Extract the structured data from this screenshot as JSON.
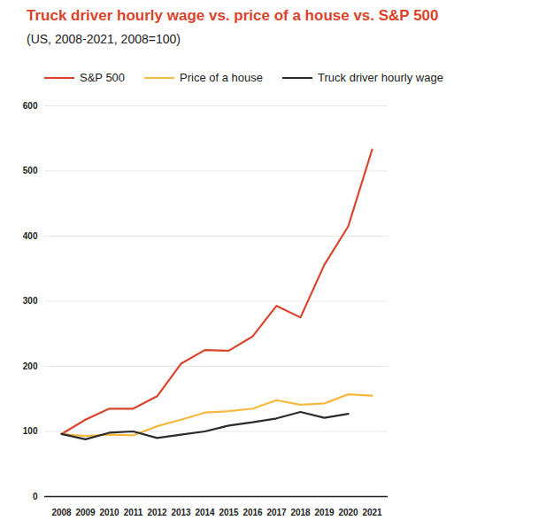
{
  "chart_data": {
    "type": "line",
    "title": "Truck driver hourly wage vs. price of a house vs. S&P 500",
    "subtitle": "(US, 2008-2021, 2008=100)",
    "categories": [
      "2008",
      "2009",
      "2010",
      "2011",
      "2012",
      "2013",
      "2014",
      "2015",
      "2016",
      "2017",
      "2018",
      "2019",
      "2020",
      "2021"
    ],
    "series": [
      {
        "name": "S&P 500",
        "color": "#d9442c",
        "values": [
          96,
          118,
          135,
          135,
          154,
          204,
          225,
          224,
          246,
          293,
          275,
          356,
          415,
          533
        ]
      },
      {
        "name": "Price of a house",
        "color": "#f5b93f",
        "values": [
          96,
          93,
          95,
          94,
          108,
          118,
          129,
          131,
          135,
          148,
          141,
          143,
          157,
          155
        ]
      },
      {
        "name": "Truck driver hourly wage",
        "color": "#2b2b2b",
        "values": [
          96,
          88,
          98,
          100,
          90,
          95,
          100,
          109,
          114,
          120,
          130,
          121,
          127,
          null
        ]
      }
    ],
    "ylim": [
      0,
      600
    ],
    "yticks": [
      0,
      100,
      200,
      300,
      400,
      500,
      600
    ],
    "grid": true,
    "legend": "top"
  }
}
